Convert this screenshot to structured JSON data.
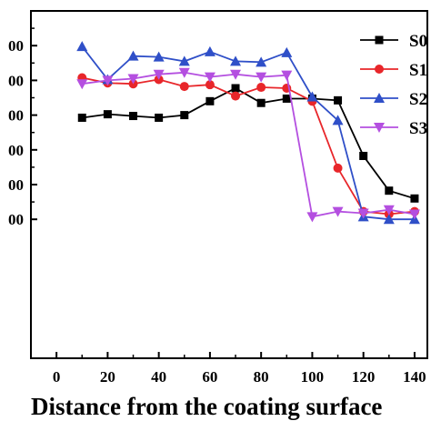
{
  "chart_data": {
    "type": "line",
    "title": "",
    "xlabel": "Distance from the coating surface",
    "ylabel": "",
    "xlim": [
      -10,
      145
    ],
    "ylim": [
      250,
      450
    ],
    "x_ticks": [
      "0",
      "20",
      "40",
      "60",
      "80",
      "100",
      "120",
      "140"
    ],
    "y_ticks": [
      {
        "value": 430,
        "label": "00"
      },
      {
        "value": 410,
        "label": "00"
      },
      {
        "value": 390,
        "label": "00"
      },
      {
        "value": 370,
        "label": "00"
      },
      {
        "value": 350,
        "label": "00"
      },
      {
        "value": 330,
        "label": "00"
      }
    ],
    "grid": false,
    "legend_position": "top-right",
    "x": [
      10,
      20,
      30,
      40,
      50,
      60,
      70,
      80,
      90,
      100,
      110,
      120,
      130,
      140
    ],
    "series": [
      {
        "name": "S0",
        "color": "#000000",
        "marker": "square",
        "values": [
          388.5,
          390.5,
          389.5,
          388.5,
          390,
          398,
          405.5,
          397,
          399.5,
          399.5,
          398.5,
          366.5,
          346.5,
          342
        ]
      },
      {
        "name": "S1",
        "color": "#e8262a",
        "marker": "circle",
        "values": [
          411.5,
          408.5,
          408,
          410.5,
          406.5,
          407.5,
          401,
          406,
          405.5,
          398,
          359.5,
          334.5,
          333,
          334.5
        ]
      },
      {
        "name": "S2",
        "color": "#2f4fc8",
        "marker": "triangle-up",
        "values": [
          429.5,
          410.5,
          424,
          423.5,
          421,
          426.5,
          421,
          420.5,
          426,
          400.5,
          387,
          331.5,
          330,
          330
        ]
      },
      {
        "name": "S3",
        "color": "#b44fe0",
        "marker": "triangle-down",
        "values": [
          408,
          410,
          411,
          413.5,
          414.5,
          412,
          413.5,
          412,
          413,
          331.5,
          334.5,
          333.5,
          335.5,
          333
        ]
      }
    ]
  }
}
